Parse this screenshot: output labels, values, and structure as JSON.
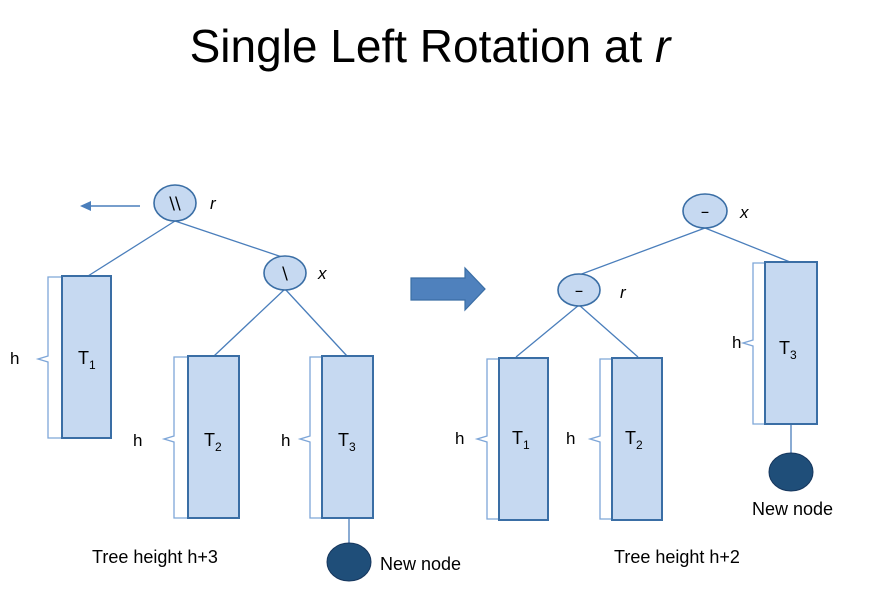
{
  "title": {
    "text": "Single Left Rotation at ",
    "var": "r"
  },
  "before": {
    "root": {
      "symbol": "\\\\",
      "name": "r"
    },
    "child": {
      "symbol": "\\",
      "name": "x"
    },
    "subtrees": [
      {
        "label": "T",
        "sub": "1",
        "height": "h"
      },
      {
        "label": "T",
        "sub": "2",
        "height": "h"
      },
      {
        "label": "T",
        "sub": "3",
        "height": "h"
      }
    ],
    "new_node_label": "New node",
    "caption": "Tree height h+3"
  },
  "after": {
    "root": {
      "symbol": "–",
      "name": "x"
    },
    "child": {
      "symbol": "–",
      "name": "r"
    },
    "subtrees": [
      {
        "label": "T",
        "sub": "1",
        "height": "h"
      },
      {
        "label": "T",
        "sub": "2",
        "height": "h"
      },
      {
        "label": "T",
        "sub": "3",
        "height": "h"
      }
    ],
    "new_node_label": "New node",
    "caption": "Tree height h+2"
  },
  "colors": {
    "node_fill": "#c6d9f1",
    "node_stroke": "#3a6ea5",
    "new_node_fill": "#1f4e79",
    "arrow_fill": "#4f81bd"
  }
}
